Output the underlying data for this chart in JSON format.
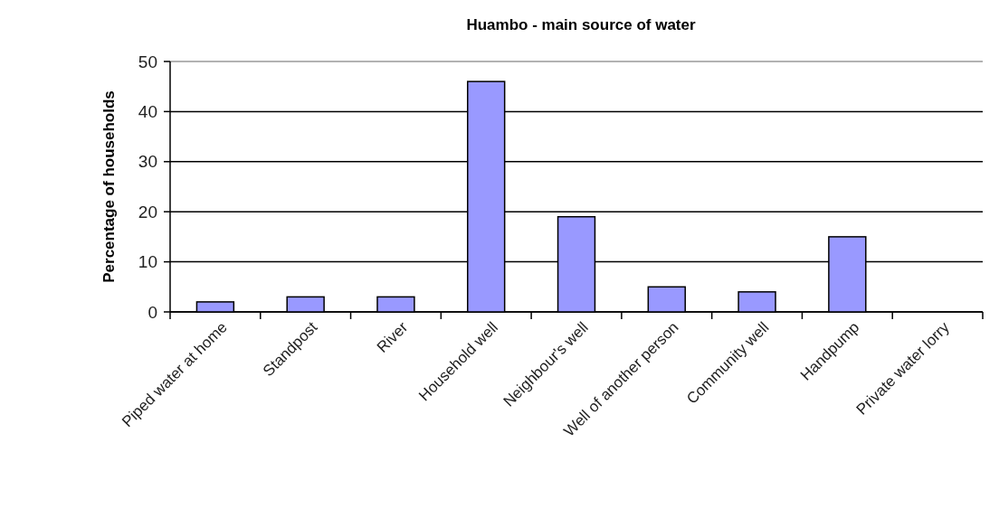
{
  "chart_data": {
    "type": "bar",
    "title": "Huambo - main source of water",
    "ylabel": "Percentage of households",
    "categories": [
      "Piped water at home",
      "Standpost",
      "River",
      "Household well",
      "Neighbour's well",
      "Well of another person",
      "Community well",
      "Handpump",
      "Private water lorry"
    ],
    "values": [
      2,
      3,
      3,
      46,
      19,
      5,
      4,
      15,
      0
    ],
    "color": "#9999ff",
    "ylim": [
      0,
      50
    ],
    "yticks": [
      0,
      10,
      20,
      30,
      40,
      50
    ],
    "grid": "y"
  }
}
